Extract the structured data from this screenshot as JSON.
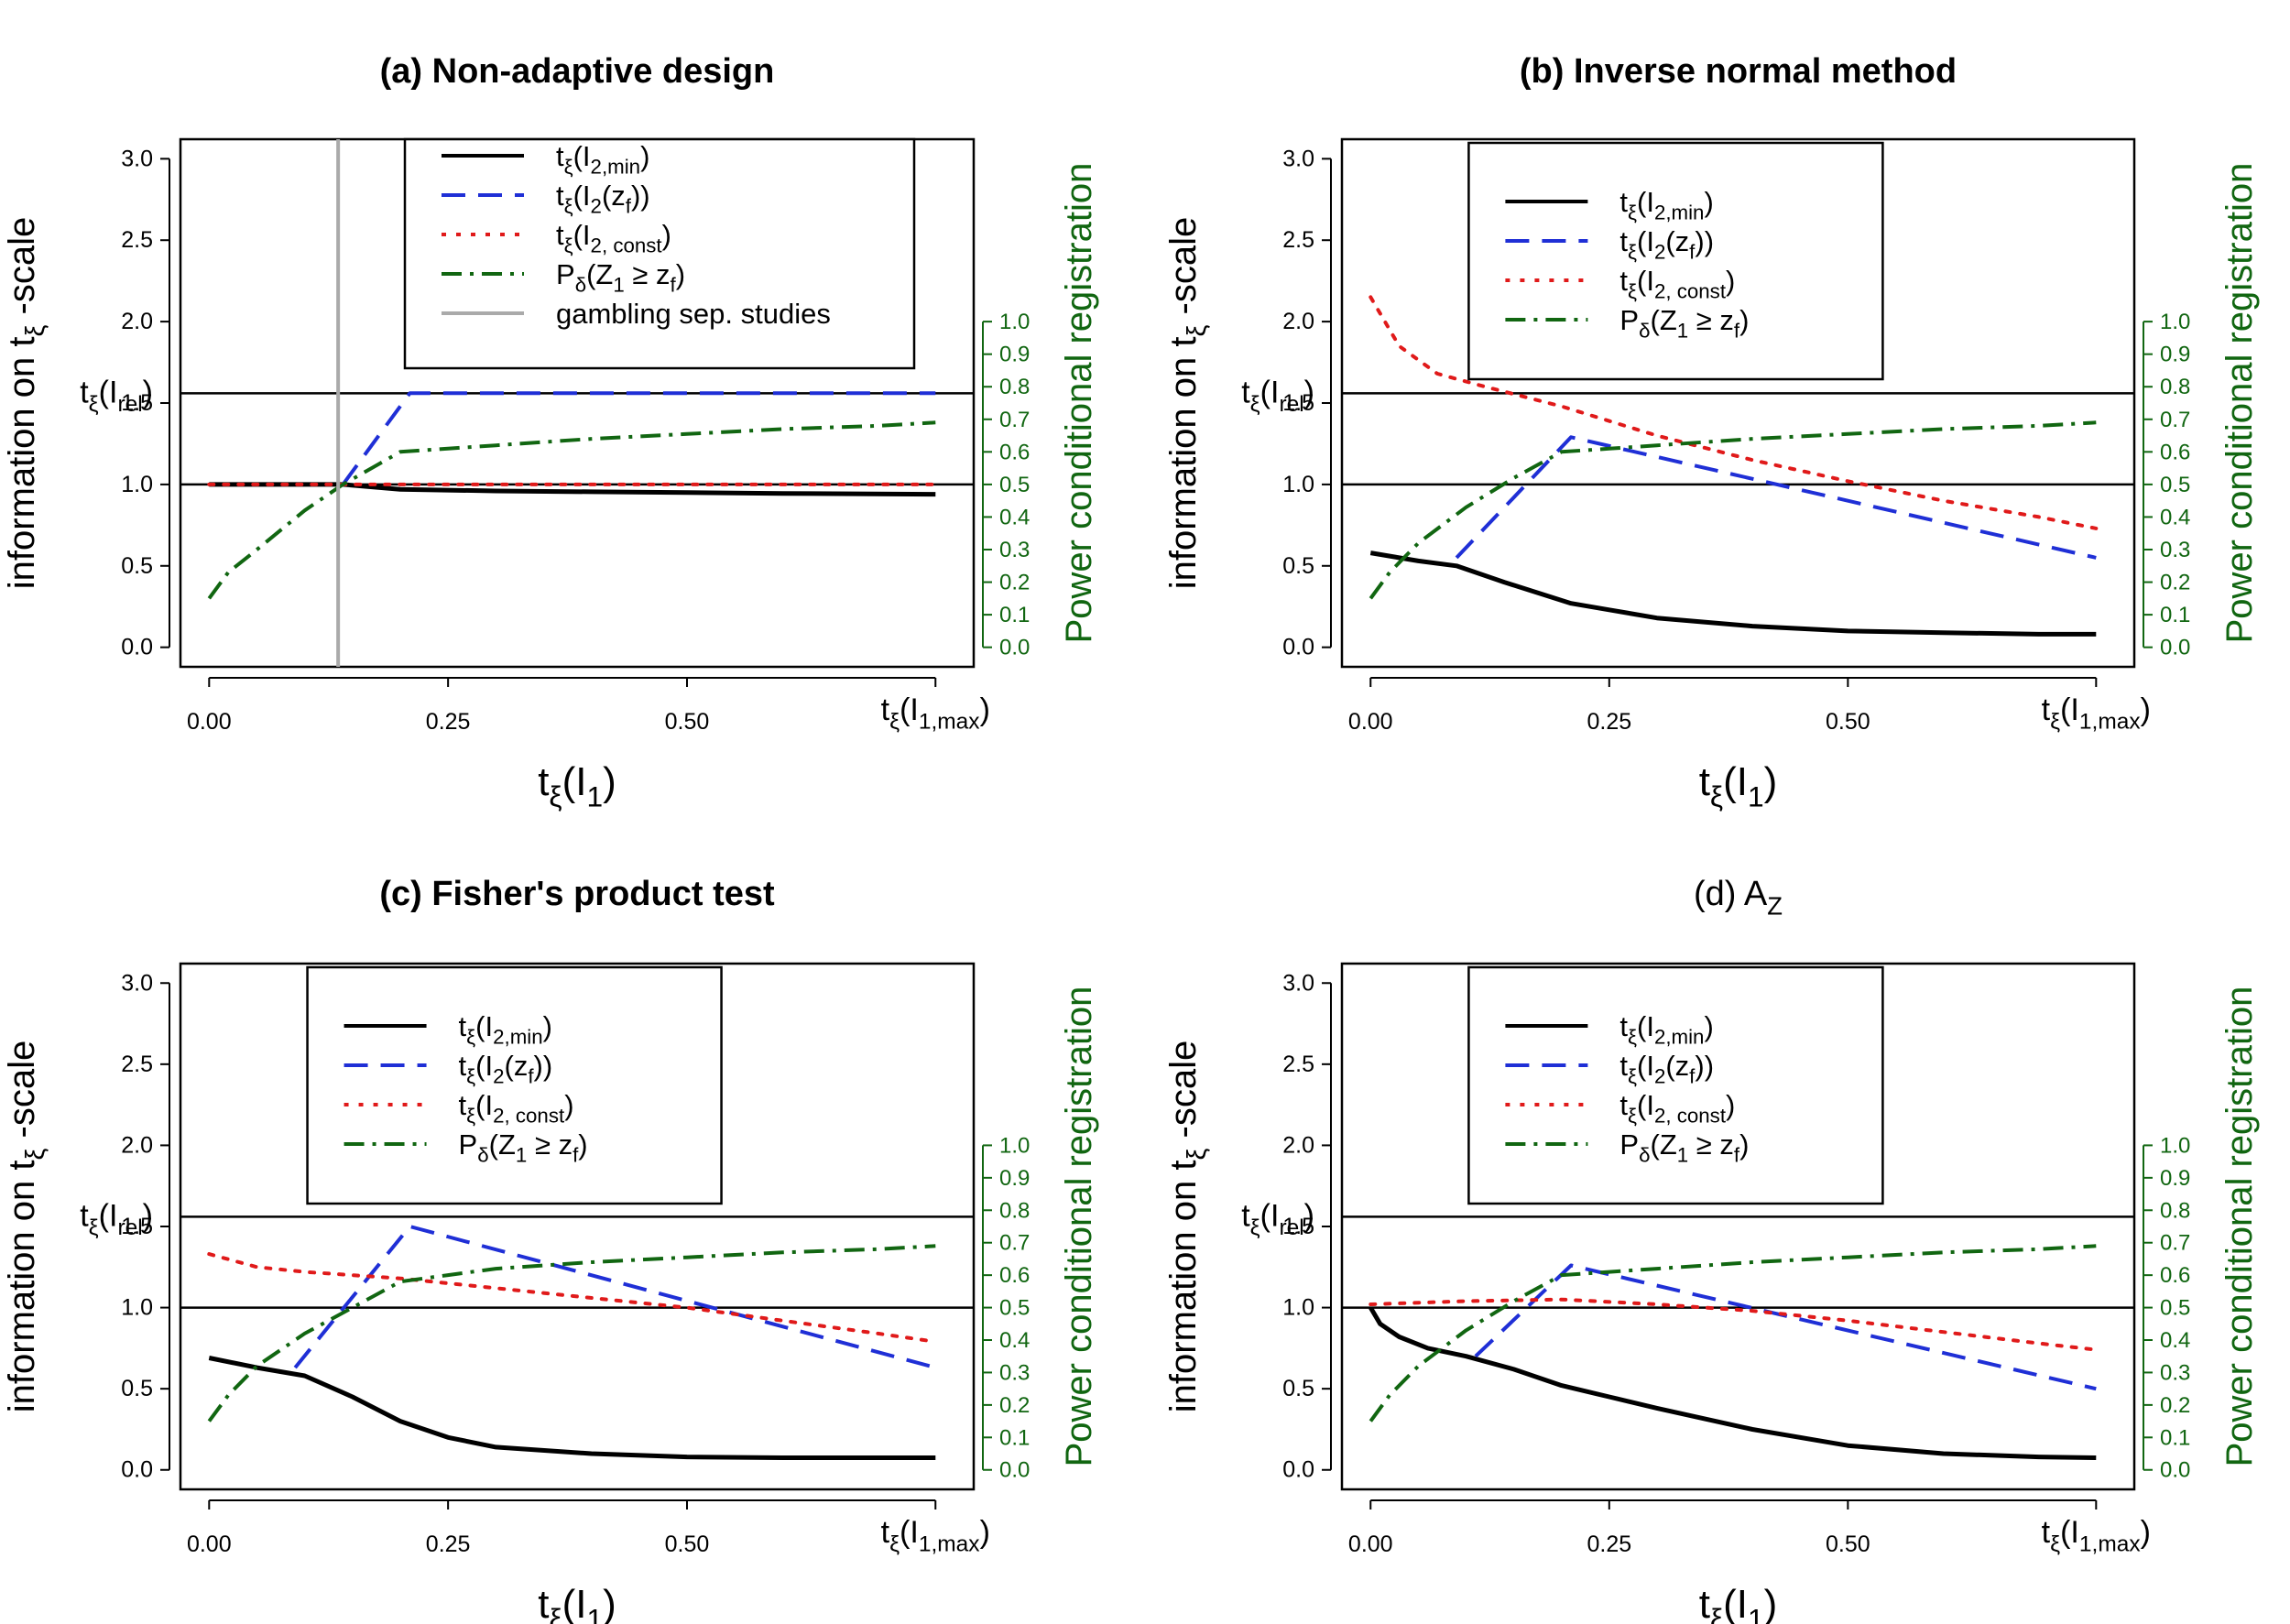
{
  "figure": {
    "line_colors": {
      "min": "#000000",
      "zf": "#1f2fd6",
      "const": "#e01a1a",
      "power": "#116611",
      "gambling": "#aaaaaa",
      "right_axis": "#116611"
    }
  },
  "chart_data": [
    {
      "id": "a",
      "type": "line",
      "title": "(a) Non-adaptive design",
      "title_bold": true,
      "xlabel": "tξ(I1)",
      "ylabel": "information on  tξ -scale",
      "y2label": "Power conditional registration",
      "xlim": [
        -0.03,
        0.8
      ],
      "ylim": [
        -0.12,
        3.12
      ],
      "y2lim": [
        0,
        1
      ],
      "x_ticks": [
        "0.00",
        "0.25",
        "0.50"
      ],
      "x_tick_values": [
        0,
        0.25,
        0.5
      ],
      "x_max_label": "tξ(I1,max)",
      "y_ticks": [
        "0.0",
        "0.5",
        "1.0",
        "1.5",
        "2.0",
        "2.5",
        "3.0"
      ],
      "y_tick_values": [
        0,
        0.5,
        1.0,
        1.5,
        2.0,
        2.5,
        3.0
      ],
      "y_rel_label": "tξ(Irel)",
      "y2_ticks": [
        "0.0",
        "0.1",
        "0.2",
        "0.3",
        "0.4",
        "0.5",
        "0.6",
        "0.7",
        "0.8",
        "0.9",
        "1.0"
      ],
      "hlines": [
        1.0,
        1.56
      ],
      "legend": [
        "tξ(I2,min)",
        "tξ(I2(zf))",
        "tξ(I2, const)",
        "Pδ(Z1 ≥ zf)",
        "gambling sep. studies"
      ],
      "series": [
        {
          "name": "tξ(I2,min)",
          "style": "solid",
          "x": [
            0.0,
            0.14,
            0.2,
            0.3,
            0.4,
            0.5,
            0.6,
            0.76
          ],
          "y": [
            1.0,
            1.0,
            0.97,
            0.96,
            0.955,
            0.95,
            0.945,
            0.94
          ]
        },
        {
          "name": "tξ(I2(zf))",
          "style": "dashed",
          "x": [
            0.14,
            0.21,
            0.3,
            0.5,
            0.76
          ],
          "y": [
            1.0,
            1.56,
            1.56,
            1.56,
            1.56
          ]
        },
        {
          "name": "tξ(I2, const)",
          "style": "dotted",
          "x": [
            0.0,
            0.14,
            0.3,
            0.5,
            0.76
          ],
          "y": [
            1.0,
            1.0,
            1.0,
            1.0,
            1.0
          ]
        },
        {
          "name": "Pδ(Z1 ≥ zf)",
          "style": "dashdot",
          "x": [
            0.0,
            0.02,
            0.05,
            0.1,
            0.14,
            0.2,
            0.25,
            0.3,
            0.4,
            0.5,
            0.6,
            0.7,
            0.76
          ],
          "y": [
            0.15,
            0.23,
            0.3,
            0.42,
            0.5,
            0.6,
            0.61,
            0.62,
            0.64,
            0.655,
            0.67,
            0.68,
            0.69
          ],
          "axis": "y2"
        },
        {
          "name": "gambling sep. studies",
          "style": "vline",
          "x": [
            0.135
          ]
        }
      ]
    },
    {
      "id": "b",
      "type": "line",
      "title": "(b) Inverse normal method",
      "title_bold": true,
      "xlabel": "tξ(I1)",
      "ylabel": "information on  tξ -scale",
      "y2label": "Power conditional registration",
      "xlim": [
        -0.03,
        0.8
      ],
      "ylim": [
        -0.12,
        3.12
      ],
      "y2lim": [
        0,
        1
      ],
      "x_ticks": [
        "0.00",
        "0.25",
        "0.50"
      ],
      "x_tick_values": [
        0,
        0.25,
        0.5
      ],
      "x_max_label": "tξ(I1,max)",
      "y_ticks": [
        "0.0",
        "0.5",
        "1.0",
        "1.5",
        "2.0",
        "2.5",
        "3.0"
      ],
      "y_tick_values": [
        0,
        0.5,
        1.0,
        1.5,
        2.0,
        2.5,
        3.0
      ],
      "y_rel_label": "tξ(Irel)",
      "y2_ticks": [
        "0.0",
        "0.1",
        "0.2",
        "0.3",
        "0.4",
        "0.5",
        "0.6",
        "0.7",
        "0.8",
        "0.9",
        "1.0"
      ],
      "hlines": [
        1.0,
        1.56
      ],
      "legend": [
        "tξ(I2,min)",
        "tξ(I2(zf))",
        "tξ(I2, const)",
        "Pδ(Z1 ≥ zf)"
      ],
      "series": [
        {
          "name": "tξ(I2,min)",
          "style": "solid",
          "x": [
            0.0,
            0.05,
            0.09,
            0.14,
            0.21,
            0.25,
            0.3,
            0.4,
            0.5,
            0.6,
            0.7,
            0.76
          ],
          "y": [
            0.58,
            0.53,
            0.5,
            0.4,
            0.27,
            0.23,
            0.18,
            0.13,
            0.1,
            0.09,
            0.08,
            0.08
          ]
        },
        {
          "name": "tξ(I2(zf))",
          "style": "dashed",
          "x": [
            0.09,
            0.21,
            0.76
          ],
          "y": [
            0.55,
            1.29,
            0.55
          ]
        },
        {
          "name": "tξ(I2, const)",
          "style": "dotted",
          "x": [
            0.0,
            0.03,
            0.07,
            0.12,
            0.2,
            0.3,
            0.4,
            0.5,
            0.6,
            0.7,
            0.76
          ],
          "y": [
            2.15,
            1.85,
            1.68,
            1.6,
            1.48,
            1.3,
            1.15,
            1.02,
            0.9,
            0.8,
            0.73
          ]
        },
        {
          "name": "Pδ(Z1 ≥ zf)",
          "style": "dashdot",
          "x": [
            0.0,
            0.02,
            0.05,
            0.1,
            0.15,
            0.2,
            0.25,
            0.3,
            0.4,
            0.5,
            0.6,
            0.7,
            0.76
          ],
          "y": [
            0.15,
            0.23,
            0.32,
            0.43,
            0.52,
            0.6,
            0.61,
            0.62,
            0.64,
            0.655,
            0.67,
            0.68,
            0.69
          ],
          "axis": "y2"
        }
      ]
    },
    {
      "id": "c",
      "type": "line",
      "title": "(c) Fisher's product test",
      "title_bold": true,
      "xlabel": "tξ(I1)",
      "ylabel": "information on  tξ -scale",
      "y2label": "Power conditional registration",
      "xlim": [
        -0.03,
        0.8
      ],
      "ylim": [
        -0.12,
        3.12
      ],
      "y2lim": [
        0,
        1
      ],
      "x_ticks": [
        "0.00",
        "0.25",
        "0.50"
      ],
      "x_tick_values": [
        0,
        0.25,
        0.5
      ],
      "x_max_label": "tξ(I1,max)",
      "y_ticks": [
        "0.0",
        "0.5",
        "1.0",
        "1.5",
        "2.0",
        "2.5",
        "3.0"
      ],
      "y_tick_values": [
        0,
        0.5,
        1.0,
        1.5,
        2.0,
        2.5,
        3.0
      ],
      "y_rel_label": "tξ(Irel)",
      "y2_ticks": [
        "0.0",
        "0.1",
        "0.2",
        "0.3",
        "0.4",
        "0.5",
        "0.6",
        "0.7",
        "0.8",
        "0.9",
        "1.0"
      ],
      "hlines": [
        1.0,
        1.56
      ],
      "legend": [
        "tξ(I2,min)",
        "tξ(I2(zf))",
        "tξ(I2, const)",
        "Pδ(Z1 ≥ zf)"
      ],
      "series": [
        {
          "name": "tξ(I2,min)",
          "style": "solid",
          "x": [
            0.0,
            0.05,
            0.1,
            0.15,
            0.2,
            0.25,
            0.3,
            0.4,
            0.5,
            0.6,
            0.7,
            0.76
          ],
          "y": [
            0.69,
            0.63,
            0.58,
            0.45,
            0.3,
            0.2,
            0.14,
            0.1,
            0.08,
            0.075,
            0.075,
            0.075
          ]
        },
        {
          "name": "tξ(I2(zf))",
          "style": "dashed",
          "x": [
            0.09,
            0.21,
            0.76
          ],
          "y": [
            0.63,
            1.5,
            0.63
          ]
        },
        {
          "name": "tξ(I2, const)",
          "style": "dotted",
          "x": [
            0.0,
            0.05,
            0.1,
            0.2,
            0.3,
            0.4,
            0.5,
            0.6,
            0.7,
            0.76
          ],
          "y": [
            1.33,
            1.25,
            1.22,
            1.18,
            1.12,
            1.06,
            1.0,
            0.92,
            0.84,
            0.79
          ]
        },
        {
          "name": "Pδ(Z1 ≥ zf)",
          "style": "dashdot",
          "x": [
            0.0,
            0.02,
            0.05,
            0.1,
            0.15,
            0.2,
            0.25,
            0.3,
            0.4,
            0.5,
            0.6,
            0.7,
            0.76
          ],
          "y": [
            0.15,
            0.23,
            0.32,
            0.42,
            0.5,
            0.58,
            0.6,
            0.62,
            0.64,
            0.655,
            0.67,
            0.68,
            0.69
          ],
          "axis": "y2"
        }
      ]
    },
    {
      "id": "d",
      "type": "line",
      "title": "(d) AZ",
      "title_bold": false,
      "xlabel": "tξ(I1)",
      "ylabel": "information on  tξ -scale",
      "y2label": "Power conditional registration",
      "xlim": [
        -0.03,
        0.8
      ],
      "ylim": [
        -0.12,
        3.12
      ],
      "y2lim": [
        0,
        1
      ],
      "x_ticks": [
        "0.00",
        "0.25",
        "0.50"
      ],
      "x_tick_values": [
        0,
        0.25,
        0.5
      ],
      "x_max_label": "tξ(I1,max)",
      "y_ticks": [
        "0.0",
        "0.5",
        "1.0",
        "1.5",
        "2.0",
        "2.5",
        "3.0"
      ],
      "y_tick_values": [
        0,
        0.5,
        1.0,
        1.5,
        2.0,
        2.5,
        3.0
      ],
      "y_rel_label": "tξ(Irel)",
      "y2_ticks": [
        "0.0",
        "0.1",
        "0.2",
        "0.3",
        "0.4",
        "0.5",
        "0.6",
        "0.7",
        "0.8",
        "0.9",
        "1.0"
      ],
      "hlines": [
        1.0,
        1.56
      ],
      "legend": [
        "tξ(I2,min)",
        "tξ(I2(zf))",
        "tξ(I2, const)",
        "Pδ(Z1 ≥ zf)"
      ],
      "series": [
        {
          "name": "tξ(I2,min)",
          "style": "solid",
          "x": [
            0.0,
            0.01,
            0.03,
            0.06,
            0.1,
            0.15,
            0.2,
            0.25,
            0.3,
            0.4,
            0.5,
            0.6,
            0.7,
            0.76
          ],
          "y": [
            1.0,
            0.9,
            0.82,
            0.75,
            0.7,
            0.62,
            0.52,
            0.45,
            0.38,
            0.25,
            0.15,
            0.1,
            0.08,
            0.075
          ]
        },
        {
          "name": "tξ(I2(zf))",
          "style": "dashed",
          "x": [
            0.11,
            0.21,
            0.76
          ],
          "y": [
            0.7,
            1.26,
            0.5
          ]
        },
        {
          "name": "tξ(I2, const)",
          "style": "dotted",
          "x": [
            0.0,
            0.1,
            0.2,
            0.3,
            0.4,
            0.5,
            0.6,
            0.7,
            0.76
          ],
          "y": [
            1.02,
            1.04,
            1.05,
            1.02,
            0.98,
            0.92,
            0.85,
            0.78,
            0.74
          ]
        },
        {
          "name": "Pδ(Z1 ≥ zf)",
          "style": "dashdot",
          "x": [
            0.0,
            0.02,
            0.05,
            0.1,
            0.15,
            0.2,
            0.25,
            0.3,
            0.4,
            0.5,
            0.6,
            0.7,
            0.76
          ],
          "y": [
            0.15,
            0.23,
            0.32,
            0.43,
            0.52,
            0.6,
            0.61,
            0.62,
            0.64,
            0.655,
            0.67,
            0.68,
            0.69
          ],
          "axis": "y2"
        }
      ]
    }
  ]
}
